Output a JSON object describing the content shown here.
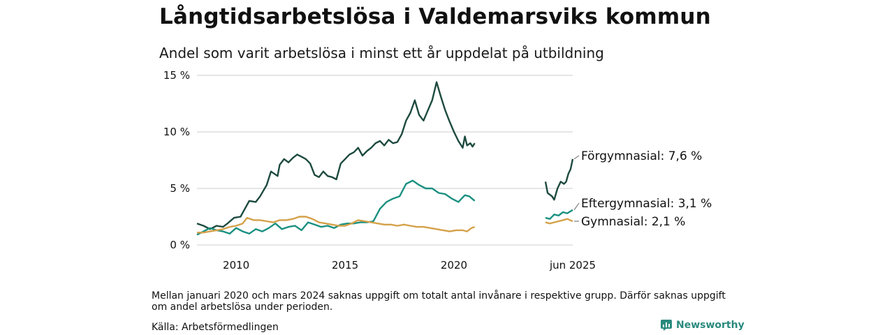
{
  "title": "Långtidsarbetslösa i Valdemarsviks kommun",
  "subtitle": "Andel som varit arbetslösa i minst ett år uppdelat på utbildning",
  "note": "Mellan januari 2020 och mars 2024 saknas uppgift om totalt antal invånare i respektive grupp. Därför saknas uppgift om andel arbetslösa under perioden.",
  "source": "Källa: Arbetsförmedlingen",
  "brand": "Newsworthy",
  "colors": {
    "forgymnasial": "#1d4a3f",
    "eftergymnasial": "#1a9080",
    "gymnasial": "#d4a14a",
    "grid": "#dddddd"
  },
  "chart_data": {
    "type": "line",
    "y_ticks": [
      "0 %",
      "5 %",
      "10 %",
      "15 %"
    ],
    "y_tick_values": [
      0,
      5,
      10,
      15
    ],
    "ylim": [
      0,
      15
    ],
    "x_ticks": [
      "2010",
      "2015",
      "2020",
      "jun 2025"
    ],
    "x_tick_values": [
      2010,
      2015,
      2020,
      2025.45
    ],
    "gap": {
      "start": 2020.95,
      "end": 2024.2
    },
    "series": [
      {
        "name": "Förgymnasial",
        "end_label": "Förgymnasial: 7,6 %",
        "color_key": "forgymnasial",
        "points": [
          [
            2008.2,
            1.9
          ],
          [
            2008.5,
            1.7
          ],
          [
            2008.8,
            1.4
          ],
          [
            2009.1,
            1.7
          ],
          [
            2009.4,
            1.6
          ],
          [
            2009.6,
            1.9
          ],
          [
            2009.9,
            2.4
          ],
          [
            2010.2,
            2.5
          ],
          [
            2010.4,
            3.2
          ],
          [
            2010.6,
            3.9
          ],
          [
            2010.9,
            3.8
          ],
          [
            2011.1,
            4.3
          ],
          [
            2011.4,
            5.3
          ],
          [
            2011.6,
            6.5
          ],
          [
            2011.9,
            6.1
          ],
          [
            2012.0,
            7.1
          ],
          [
            2012.2,
            7.6
          ],
          [
            2012.4,
            7.3
          ],
          [
            2012.6,
            7.7
          ],
          [
            2012.8,
            8.0
          ],
          [
            2013.0,
            7.8
          ],
          [
            2013.2,
            7.6
          ],
          [
            2013.4,
            7.2
          ],
          [
            2013.6,
            6.2
          ],
          [
            2013.8,
            6.0
          ],
          [
            2014.0,
            6.5
          ],
          [
            2014.2,
            6.1
          ],
          [
            2014.4,
            6.0
          ],
          [
            2014.6,
            5.8
          ],
          [
            2014.8,
            7.2
          ],
          [
            2015.0,
            7.6
          ],
          [
            2015.2,
            8.0
          ],
          [
            2015.4,
            8.2
          ],
          [
            2015.6,
            8.6
          ],
          [
            2015.8,
            7.9
          ],
          [
            2016.0,
            8.3
          ],
          [
            2016.2,
            8.6
          ],
          [
            2016.4,
            9.0
          ],
          [
            2016.6,
            9.2
          ],
          [
            2016.8,
            8.8
          ],
          [
            2017.0,
            9.3
          ],
          [
            2017.2,
            9.0
          ],
          [
            2017.4,
            9.1
          ],
          [
            2017.6,
            9.8
          ],
          [
            2017.8,
            11.0
          ],
          [
            2018.0,
            11.7
          ],
          [
            2018.2,
            12.8
          ],
          [
            2018.4,
            11.5
          ],
          [
            2018.6,
            11.0
          ],
          [
            2018.8,
            11.9
          ],
          [
            2019.0,
            12.8
          ],
          [
            2019.2,
            14.4
          ],
          [
            2019.4,
            13.1
          ],
          [
            2019.6,
            11.9
          ],
          [
            2019.8,
            10.9
          ],
          [
            2020.0,
            10.0
          ],
          [
            2020.2,
            9.2
          ],
          [
            2020.4,
            8.6
          ],
          [
            2020.5,
            9.6
          ],
          [
            2020.6,
            8.8
          ],
          [
            2020.75,
            9.0
          ],
          [
            2020.85,
            8.7
          ],
          [
            2020.95,
            9.0
          ],
          [
            2024.2,
            5.6
          ],
          [
            2024.3,
            4.6
          ],
          [
            2024.5,
            4.3
          ],
          [
            2024.6,
            4.0
          ],
          [
            2024.75,
            5.0
          ],
          [
            2024.9,
            5.6
          ],
          [
            2025.05,
            5.4
          ],
          [
            2025.15,
            5.6
          ],
          [
            2025.25,
            6.3
          ],
          [
            2025.35,
            6.7
          ],
          [
            2025.45,
            7.6
          ]
        ]
      },
      {
        "name": "Eftergymnasial",
        "end_label": "Eftergymnasial: 3,1 %",
        "color_key": "eftergymnasial",
        "points": [
          [
            2008.2,
            0.9
          ],
          [
            2008.5,
            1.2
          ],
          [
            2008.8,
            1.5
          ],
          [
            2009.1,
            1.3
          ],
          [
            2009.4,
            1.2
          ],
          [
            2009.7,
            1.0
          ],
          [
            2010.0,
            1.5
          ],
          [
            2010.3,
            1.2
          ],
          [
            2010.6,
            1.0
          ],
          [
            2010.9,
            1.4
          ],
          [
            2011.2,
            1.2
          ],
          [
            2011.5,
            1.5
          ],
          [
            2011.8,
            1.9
          ],
          [
            2012.1,
            1.4
          ],
          [
            2012.4,
            1.6
          ],
          [
            2012.7,
            1.7
          ],
          [
            2013.0,
            1.3
          ],
          [
            2013.3,
            2.0
          ],
          [
            2013.6,
            1.8
          ],
          [
            2013.9,
            1.6
          ],
          [
            2014.2,
            1.7
          ],
          [
            2014.5,
            1.5
          ],
          [
            2014.8,
            1.8
          ],
          [
            2015.1,
            1.9
          ],
          [
            2015.4,
            1.9
          ],
          [
            2015.7,
            2.0
          ],
          [
            2016.0,
            2.0
          ],
          [
            2016.3,
            2.1
          ],
          [
            2016.6,
            3.2
          ],
          [
            2016.9,
            3.8
          ],
          [
            2017.2,
            4.1
          ],
          [
            2017.5,
            4.3
          ],
          [
            2017.8,
            5.4
          ],
          [
            2018.1,
            5.7
          ],
          [
            2018.4,
            5.3
          ],
          [
            2018.7,
            5.0
          ],
          [
            2019.0,
            5.0
          ],
          [
            2019.3,
            4.6
          ],
          [
            2019.6,
            4.5
          ],
          [
            2019.9,
            4.1
          ],
          [
            2020.2,
            3.8
          ],
          [
            2020.5,
            4.4
          ],
          [
            2020.7,
            4.3
          ],
          [
            2020.95,
            3.9
          ],
          [
            2024.2,
            2.4
          ],
          [
            2024.4,
            2.3
          ],
          [
            2024.6,
            2.7
          ],
          [
            2024.8,
            2.6
          ],
          [
            2025.0,
            2.9
          ],
          [
            2025.2,
            2.8
          ],
          [
            2025.45,
            3.1
          ]
        ]
      },
      {
        "name": "Gymnasial",
        "end_label": "Gymnasial: 2,1 %",
        "color_key": "gymnasial",
        "points": [
          [
            2008.2,
            1.1
          ],
          [
            2008.5,
            1.1
          ],
          [
            2008.8,
            1.2
          ],
          [
            2009.1,
            1.3
          ],
          [
            2009.4,
            1.4
          ],
          [
            2009.7,
            1.6
          ],
          [
            2010.0,
            1.7
          ],
          [
            2010.3,
            1.9
          ],
          [
            2010.5,
            2.4
          ],
          [
            2010.8,
            2.2
          ],
          [
            2011.1,
            2.2
          ],
          [
            2011.4,
            2.1
          ],
          [
            2011.7,
            2.0
          ],
          [
            2012.0,
            2.2
          ],
          [
            2012.3,
            2.2
          ],
          [
            2012.6,
            2.3
          ],
          [
            2012.9,
            2.5
          ],
          [
            2013.2,
            2.5
          ],
          [
            2013.5,
            2.3
          ],
          [
            2013.8,
            2.0
          ],
          [
            2014.1,
            1.9
          ],
          [
            2014.4,
            1.8
          ],
          [
            2014.7,
            1.7
          ],
          [
            2015.0,
            1.7
          ],
          [
            2015.3,
            1.9
          ],
          [
            2015.6,
            2.2
          ],
          [
            2015.9,
            2.1
          ],
          [
            2016.2,
            2.0
          ],
          [
            2016.5,
            1.9
          ],
          [
            2016.8,
            1.8
          ],
          [
            2017.1,
            1.8
          ],
          [
            2017.4,
            1.7
          ],
          [
            2017.7,
            1.8
          ],
          [
            2018.0,
            1.7
          ],
          [
            2018.3,
            1.6
          ],
          [
            2018.6,
            1.6
          ],
          [
            2018.9,
            1.5
          ],
          [
            2019.2,
            1.4
          ],
          [
            2019.5,
            1.3
          ],
          [
            2019.8,
            1.2
          ],
          [
            2020.1,
            1.3
          ],
          [
            2020.4,
            1.3
          ],
          [
            2020.6,
            1.2
          ],
          [
            2020.8,
            1.5
          ],
          [
            2020.95,
            1.6
          ],
          [
            2024.2,
            2.0
          ],
          [
            2024.4,
            1.9
          ],
          [
            2024.6,
            2.0
          ],
          [
            2024.8,
            2.1
          ],
          [
            2025.0,
            2.2
          ],
          [
            2025.2,
            2.3
          ],
          [
            2025.45,
            2.1
          ]
        ]
      }
    ]
  }
}
